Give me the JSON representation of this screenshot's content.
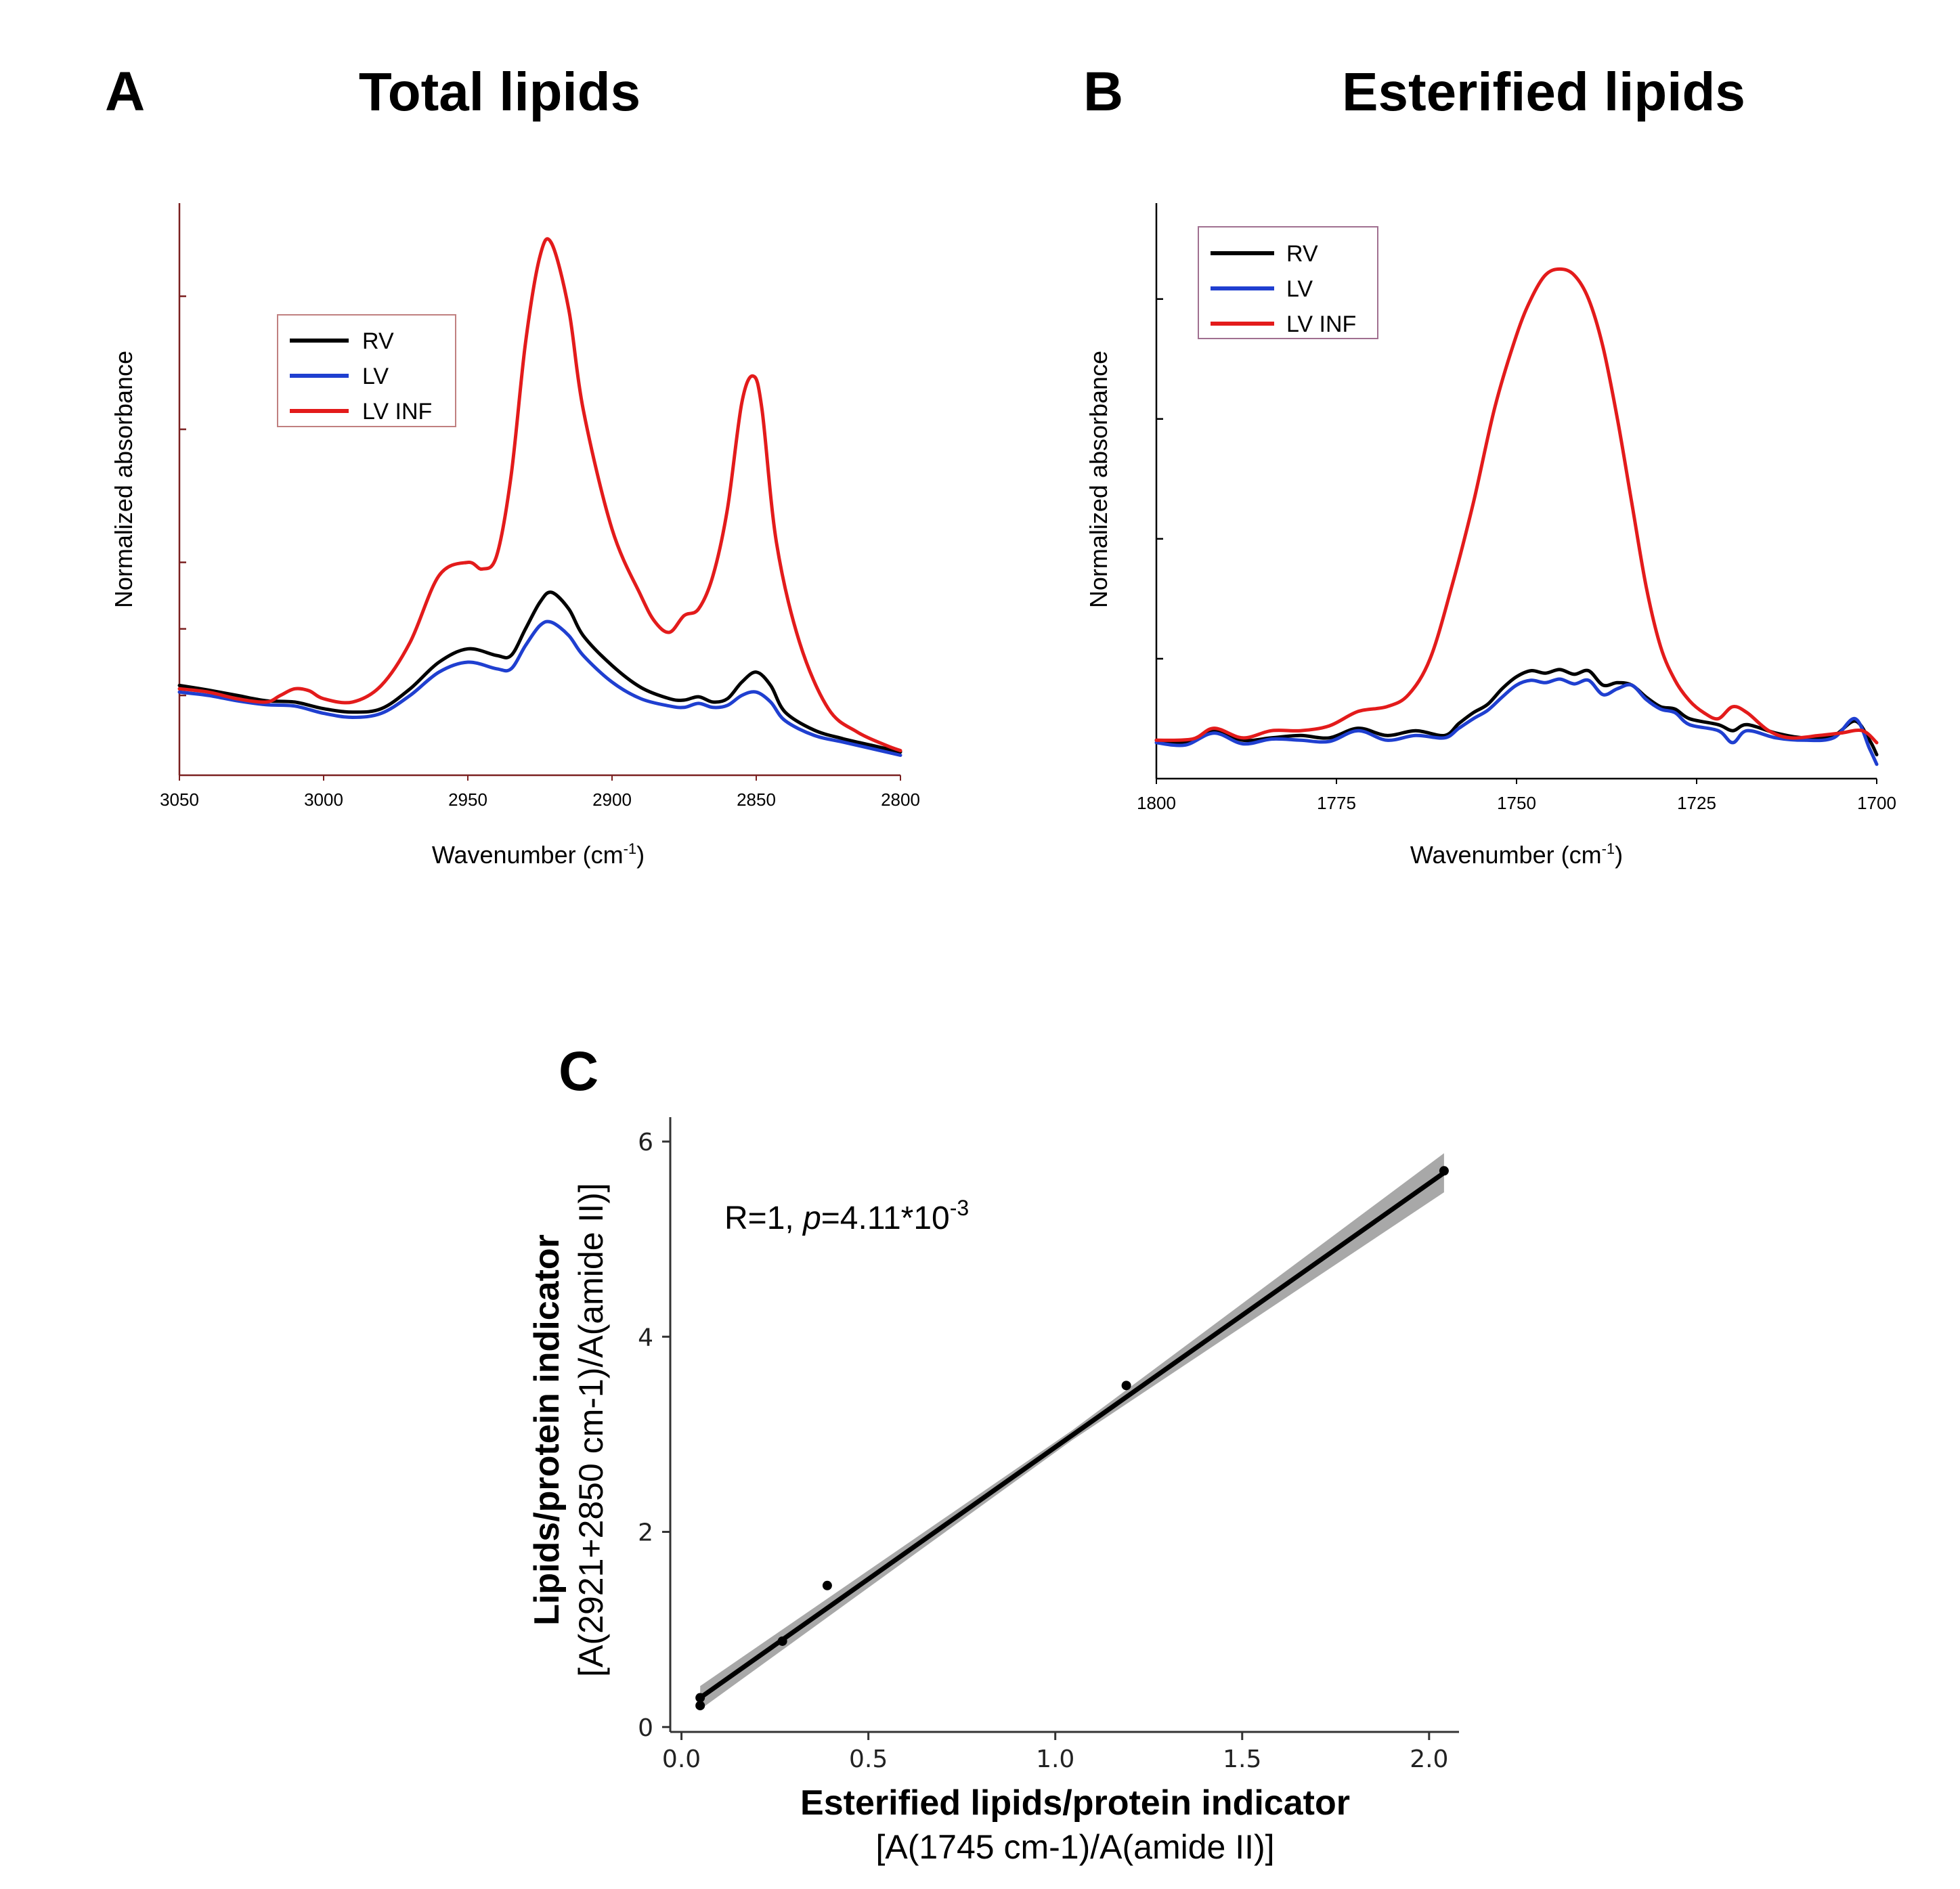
{
  "chart_data": [
    {
      "id": "A",
      "type": "line",
      "panel_label": "A",
      "title": "Total lipids",
      "xlabel_main": "Wavenumber (cm",
      "xlabel_sup": "-1",
      "xlabel_close": ")",
      "ylabel": "Normalized absorbance",
      "xlim": [
        3050,
        2800
      ],
      "ylim": [
        0.0,
        0.86
      ],
      "x_ticks": [
        3050,
        3000,
        2950,
        2900,
        2850,
        2800
      ],
      "y_tick_values": [
        0.12,
        0.22,
        0.32,
        0.52,
        0.72
      ],
      "legend_position": "top-left",
      "series": [
        {
          "name": "RV",
          "color": "#000000",
          "points": [
            [
              3050,
              0.135
            ],
            [
              3040,
              0.128
            ],
            [
              3030,
              0.12
            ],
            [
              3020,
              0.112
            ],
            [
              3010,
              0.11
            ],
            [
              3000,
              0.1
            ],
            [
              2990,
              0.095
            ],
            [
              2980,
              0.1
            ],
            [
              2970,
              0.13
            ],
            [
              2960,
              0.17
            ],
            [
              2950,
              0.19
            ],
            [
              2940,
              0.18
            ],
            [
              2935,
              0.18
            ],
            [
              2930,
              0.22
            ],
            [
              2925,
              0.26
            ],
            [
              2921,
              0.275
            ],
            [
              2915,
              0.25
            ],
            [
              2910,
              0.21
            ],
            [
              2900,
              0.165
            ],
            [
              2890,
              0.132
            ],
            [
              2880,
              0.115
            ],
            [
              2875,
              0.113
            ],
            [
              2870,
              0.118
            ],
            [
              2865,
              0.11
            ],
            [
              2860,
              0.115
            ],
            [
              2855,
              0.14
            ],
            [
              2850,
              0.155
            ],
            [
              2845,
              0.135
            ],
            [
              2840,
              0.095
            ],
            [
              2830,
              0.068
            ],
            [
              2820,
              0.055
            ],
            [
              2810,
              0.045
            ],
            [
              2800,
              0.035
            ]
          ]
        },
        {
          "name": "LV",
          "color": "#1f3fd0",
          "points": [
            [
              3050,
              0.125
            ],
            [
              3040,
              0.12
            ],
            [
              3030,
              0.112
            ],
            [
              3020,
              0.106
            ],
            [
              3010,
              0.104
            ],
            [
              3000,
              0.093
            ],
            [
              2990,
              0.087
            ],
            [
              2980,
              0.093
            ],
            [
              2970,
              0.12
            ],
            [
              2960,
              0.155
            ],
            [
              2950,
              0.17
            ],
            [
              2940,
              0.16
            ],
            [
              2935,
              0.16
            ],
            [
              2930,
              0.195
            ],
            [
              2925,
              0.225
            ],
            [
              2921,
              0.23
            ],
            [
              2915,
              0.21
            ],
            [
              2910,
              0.18
            ],
            [
              2900,
              0.14
            ],
            [
              2890,
              0.115
            ],
            [
              2880,
              0.104
            ],
            [
              2875,
              0.102
            ],
            [
              2870,
              0.108
            ],
            [
              2865,
              0.102
            ],
            [
              2860,
              0.105
            ],
            [
              2855,
              0.12
            ],
            [
              2850,
              0.125
            ],
            [
              2845,
              0.11
            ],
            [
              2840,
              0.082
            ],
            [
              2830,
              0.06
            ],
            [
              2820,
              0.05
            ],
            [
              2810,
              0.04
            ],
            [
              2800,
              0.03
            ]
          ]
        },
        {
          "name": "LV INF",
          "color": "#e31b1b",
          "points": [
            [
              3050,
              0.13
            ],
            [
              3040,
              0.125
            ],
            [
              3030,
              0.115
            ],
            [
              3020,
              0.11
            ],
            [
              3015,
              0.12
            ],
            [
              3010,
              0.13
            ],
            [
              3005,
              0.127
            ],
            [
              3000,
              0.115
            ],
            [
              2990,
              0.11
            ],
            [
              2980,
              0.135
            ],
            [
              2970,
              0.2
            ],
            [
              2960,
              0.3
            ],
            [
              2950,
              0.32
            ],
            [
              2945,
              0.31
            ],
            [
              2940,
              0.33
            ],
            [
              2935,
              0.45
            ],
            [
              2930,
              0.65
            ],
            [
              2925,
              0.78
            ],
            [
              2921,
              0.8
            ],
            [
              2915,
              0.7
            ],
            [
              2910,
              0.55
            ],
            [
              2900,
              0.37
            ],
            [
              2890,
              0.27
            ],
            [
              2885,
              0.23
            ],
            [
              2880,
              0.215
            ],
            [
              2875,
              0.24
            ],
            [
              2870,
              0.25
            ],
            [
              2865,
              0.3
            ],
            [
              2860,
              0.4
            ],
            [
              2855,
              0.56
            ],
            [
              2851,
              0.6
            ],
            [
              2848,
              0.55
            ],
            [
              2843,
              0.35
            ],
            [
              2835,
              0.2
            ],
            [
              2825,
              0.1
            ],
            [
              2815,
              0.065
            ],
            [
              2805,
              0.045
            ],
            [
              2800,
              0.037
            ]
          ]
        }
      ]
    },
    {
      "id": "B",
      "type": "line",
      "panel_label": "B",
      "title": "Esterified lipids",
      "xlabel_main": "Wavenumber (cm",
      "xlabel_sup": "-1",
      "xlabel_close": ")",
      "ylabel": "Normalized absorbance",
      "xlim": [
        1800,
        1700
      ],
      "ylim": [
        0.0,
        0.48
      ],
      "x_ticks": [
        1800,
        1775,
        1750,
        1725,
        1700
      ],
      "y_tick_values": [
        0.1,
        0.2,
        0.3,
        0.4
      ],
      "legend_position": "top-left",
      "series": [
        {
          "name": "RV",
          "color": "#000000",
          "points": [
            [
              1800,
              0.032
            ],
            [
              1796,
              0.03
            ],
            [
              1792,
              0.04
            ],
            [
              1788,
              0.032
            ],
            [
              1784,
              0.034
            ],
            [
              1780,
              0.036
            ],
            [
              1776,
              0.034
            ],
            [
              1772,
              0.042
            ],
            [
              1768,
              0.036
            ],
            [
              1764,
              0.04
            ],
            [
              1760,
              0.036
            ],
            [
              1758,
              0.046
            ],
            [
              1756,
              0.055
            ],
            [
              1754,
              0.062
            ],
            [
              1752,
              0.075
            ],
            [
              1750,
              0.085
            ],
            [
              1748,
              0.09
            ],
            [
              1746,
              0.088
            ],
            [
              1744,
              0.091
            ],
            [
              1742,
              0.087
            ],
            [
              1740,
              0.09
            ],
            [
              1738,
              0.078
            ],
            [
              1736,
              0.08
            ],
            [
              1734,
              0.078
            ],
            [
              1732,
              0.068
            ],
            [
              1730,
              0.06
            ],
            [
              1728,
              0.058
            ],
            [
              1726,
              0.05
            ],
            [
              1722,
              0.045
            ],
            [
              1720,
              0.04
            ],
            [
              1718,
              0.045
            ],
            [
              1714,
              0.038
            ],
            [
              1710,
              0.034
            ],
            [
              1706,
              0.036
            ],
            [
              1703,
              0.048
            ],
            [
              1701,
              0.032
            ],
            [
              1700,
              0.02
            ]
          ]
        },
        {
          "name": "LV",
          "color": "#1f3fd0",
          "points": [
            [
              1800,
              0.03
            ],
            [
              1796,
              0.028
            ],
            [
              1792,
              0.038
            ],
            [
              1788,
              0.029
            ],
            [
              1784,
              0.033
            ],
            [
              1780,
              0.032
            ],
            [
              1776,
              0.031
            ],
            [
              1772,
              0.04
            ],
            [
              1768,
              0.032
            ],
            [
              1764,
              0.036
            ],
            [
              1760,
              0.034
            ],
            [
              1758,
              0.042
            ],
            [
              1756,
              0.05
            ],
            [
              1754,
              0.057
            ],
            [
              1752,
              0.068
            ],
            [
              1750,
              0.078
            ],
            [
              1748,
              0.082
            ],
            [
              1746,
              0.08
            ],
            [
              1744,
              0.083
            ],
            [
              1742,
              0.079
            ],
            [
              1740,
              0.082
            ],
            [
              1738,
              0.07
            ],
            [
              1736,
              0.075
            ],
            [
              1734,
              0.078
            ],
            [
              1732,
              0.066
            ],
            [
              1730,
              0.058
            ],
            [
              1728,
              0.055
            ],
            [
              1726,
              0.045
            ],
            [
              1722,
              0.04
            ],
            [
              1720,
              0.03
            ],
            [
              1718,
              0.04
            ],
            [
              1714,
              0.034
            ],
            [
              1710,
              0.032
            ],
            [
              1706,
              0.034
            ],
            [
              1703,
              0.05
            ],
            [
              1701,
              0.025
            ],
            [
              1700,
              0.012
            ]
          ]
        },
        {
          "name": "LV INF",
          "color": "#e31b1b",
          "points": [
            [
              1800,
              0.032
            ],
            [
              1795,
              0.033
            ],
            [
              1792,
              0.042
            ],
            [
              1788,
              0.034
            ],
            [
              1784,
              0.04
            ],
            [
              1780,
              0.04
            ],
            [
              1776,
              0.044
            ],
            [
              1772,
              0.056
            ],
            [
              1768,
              0.06
            ],
            [
              1765,
              0.07
            ],
            [
              1762,
              0.1
            ],
            [
              1759,
              0.16
            ],
            [
              1756,
              0.23
            ],
            [
              1753,
              0.31
            ],
            [
              1750,
              0.37
            ],
            [
              1748,
              0.4
            ],
            [
              1746,
              0.42
            ],
            [
              1744,
              0.425
            ],
            [
              1742,
              0.42
            ],
            [
              1740,
              0.4
            ],
            [
              1738,
              0.36
            ],
            [
              1736,
              0.3
            ],
            [
              1734,
              0.23
            ],
            [
              1732,
              0.16
            ],
            [
              1730,
              0.11
            ],
            [
              1728,
              0.082
            ],
            [
              1726,
              0.065
            ],
            [
              1724,
              0.055
            ],
            [
              1722,
              0.05
            ],
            [
              1720,
              0.06
            ],
            [
              1718,
              0.055
            ],
            [
              1715,
              0.04
            ],
            [
              1712,
              0.034
            ],
            [
              1708,
              0.036
            ],
            [
              1705,
              0.038
            ],
            [
              1702,
              0.04
            ],
            [
              1700,
              0.03
            ]
          ]
        }
      ]
    },
    {
      "id": "C",
      "type": "scatter",
      "panel_label": "C",
      "xlabel": "Esterified lipids/protein indicator",
      "xlabel_sub": "[A(1745 cm-1)/A(amide II)]",
      "ylabel": "Lipids/protein indicator",
      "ylabel_sub": "[A(2921+2850 cm-1)/A(amide II)]",
      "xlim": [
        -0.03,
        2.08
      ],
      "ylim": [
        -0.05,
        6.25
      ],
      "x_ticks": [
        "0.0",
        "0.5",
        "1.0",
        "1.5",
        "2.0"
      ],
      "y_ticks": [
        "0",
        "2",
        "4",
        "6"
      ],
      "points": [
        [
          0.05,
          0.22
        ],
        [
          0.05,
          0.3
        ],
        [
          0.27,
          0.88
        ],
        [
          0.39,
          1.45
        ],
        [
          1.19,
          3.5
        ],
        [
          2.04,
          5.7
        ]
      ],
      "regression": {
        "x1": 0.05,
        "y1": 0.3,
        "x2": 2.04,
        "y2": 5.68,
        "ci_half_start": 0.12,
        "ci_half_mid": 0.05,
        "ci_half_end": 0.2
      },
      "annotation_main": "R=1, ",
      "annotation_p": "p",
      "annotation_value": "=4.11*10",
      "annotation_sup": "-3"
    }
  ]
}
